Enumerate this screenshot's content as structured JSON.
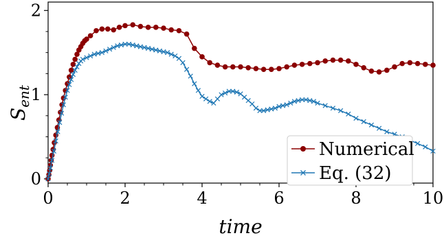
{
  "chart_data": {
    "type": "line",
    "xlabel": "time",
    "ylabel": "S",
    "ylabel_sub": "ent",
    "xlim": [
      0,
      10
    ],
    "ylim": [
      -0.05,
      2.1
    ],
    "xticks": [
      0,
      2,
      4,
      6,
      8,
      10
    ],
    "yticks": [
      0,
      1,
      2
    ],
    "legend": "lower-right",
    "grid": false,
    "series": [
      {
        "name": "Numerical",
        "color": "#8b0000",
        "marker": "circle",
        "points": [
          [
            0.0,
            0.0
          ],
          [
            0.02,
            0.05
          ],
          [
            0.04,
            0.1
          ],
          [
            0.06,
            0.16
          ],
          [
            0.08,
            0.22
          ],
          [
            0.1,
            0.28
          ],
          [
            0.13,
            0.35
          ],
          [
            0.16,
            0.43
          ],
          [
            0.2,
            0.52
          ],
          [
            0.24,
            0.61
          ],
          [
            0.28,
            0.7
          ],
          [
            0.32,
            0.79
          ],
          [
            0.36,
            0.88
          ],
          [
            0.4,
            0.96
          ],
          [
            0.45,
            1.05
          ],
          [
            0.5,
            1.13
          ],
          [
            0.55,
            1.21
          ],
          [
            0.6,
            1.29
          ],
          [
            0.65,
            1.36
          ],
          [
            0.7,
            1.42
          ],
          [
            0.75,
            1.48
          ],
          [
            0.8,
            1.53
          ],
          [
            0.85,
            1.57
          ],
          [
            0.9,
            1.61
          ],
          [
            0.95,
            1.64
          ],
          [
            1.0,
            1.66
          ],
          [
            1.1,
            1.7
          ],
          [
            1.25,
            1.76
          ],
          [
            1.4,
            1.78
          ],
          [
            1.55,
            1.78
          ],
          [
            1.7,
            1.77
          ],
          [
            1.85,
            1.8
          ],
          [
            2.0,
            1.82
          ],
          [
            2.2,
            1.83
          ],
          [
            2.4,
            1.81
          ],
          [
            2.6,
            1.8
          ],
          [
            2.8,
            1.8
          ],
          [
            3.0,
            1.79
          ],
          [
            3.2,
            1.77
          ],
          [
            3.4,
            1.76
          ],
          [
            3.6,
            1.72
          ],
          [
            3.8,
            1.55
          ],
          [
            4.0,
            1.45
          ],
          [
            4.2,
            1.38
          ],
          [
            4.4,
            1.35
          ],
          [
            4.6,
            1.33
          ],
          [
            4.8,
            1.33
          ],
          [
            5.0,
            1.33
          ],
          [
            5.2,
            1.32
          ],
          [
            5.4,
            1.31
          ],
          [
            5.6,
            1.3
          ],
          [
            5.8,
            1.3
          ],
          [
            6.0,
            1.31
          ],
          [
            6.2,
            1.33
          ],
          [
            6.4,
            1.35
          ],
          [
            6.6,
            1.36
          ],
          [
            6.8,
            1.37
          ],
          [
            7.0,
            1.38
          ],
          [
            7.2,
            1.4
          ],
          [
            7.4,
            1.41
          ],
          [
            7.6,
            1.41
          ],
          [
            7.8,
            1.4
          ],
          [
            8.0,
            1.36
          ],
          [
            8.2,
            1.32
          ],
          [
            8.4,
            1.28
          ],
          [
            8.6,
            1.27
          ],
          [
            8.8,
            1.29
          ],
          [
            9.0,
            1.33
          ],
          [
            9.2,
            1.37
          ],
          [
            9.4,
            1.38
          ],
          [
            9.6,
            1.37
          ],
          [
            9.8,
            1.36
          ],
          [
            10.0,
            1.35
          ]
        ]
      },
      {
        "name": "Eq. (32)",
        "color": "#1f77b4",
        "marker": "x",
        "points": [
          [
            0.0,
            0.0
          ],
          [
            0.03,
            0.06
          ],
          [
            0.06,
            0.13
          ],
          [
            0.1,
            0.22
          ],
          [
            0.15,
            0.33
          ],
          [
            0.2,
            0.45
          ],
          [
            0.25,
            0.56
          ],
          [
            0.3,
            0.67
          ],
          [
            0.35,
            0.78
          ],
          [
            0.4,
            0.88
          ],
          [
            0.45,
            0.97
          ],
          [
            0.5,
            1.05
          ],
          [
            0.55,
            1.12
          ],
          [
            0.6,
            1.18
          ],
          [
            0.65,
            1.24
          ],
          [
            0.7,
            1.29
          ],
          [
            0.75,
            1.33
          ],
          [
            0.8,
            1.37
          ],
          [
            0.85,
            1.4
          ],
          [
            0.9,
            1.42
          ],
          [
            1.0,
            1.44
          ],
          [
            1.1,
            1.46
          ],
          [
            1.2,
            1.48
          ],
          [
            1.3,
            1.49
          ],
          [
            1.4,
            1.5
          ],
          [
            1.5,
            1.52
          ],
          [
            1.6,
            1.54
          ],
          [
            1.7,
            1.56
          ],
          [
            1.8,
            1.58
          ],
          [
            1.9,
            1.59
          ],
          [
            2.0,
            1.6
          ],
          [
            2.1,
            1.6
          ],
          [
            2.2,
            1.59
          ],
          [
            2.3,
            1.58
          ],
          [
            2.4,
            1.57
          ],
          [
            2.5,
            1.56
          ],
          [
            2.6,
            1.55
          ],
          [
            2.7,
            1.54
          ],
          [
            2.8,
            1.53
          ],
          [
            2.9,
            1.52
          ],
          [
            3.0,
            1.51
          ],
          [
            3.1,
            1.5
          ],
          [
            3.2,
            1.48
          ],
          [
            3.3,
            1.46
          ],
          [
            3.4,
            1.43
          ],
          [
            3.5,
            1.38
          ],
          [
            3.6,
            1.3
          ],
          [
            3.7,
            1.22
          ],
          [
            3.8,
            1.13
          ],
          [
            3.9,
            1.05
          ],
          [
            4.0,
            0.98
          ],
          [
            4.1,
            0.95
          ],
          [
            4.2,
            0.92
          ],
          [
            4.3,
            0.9
          ],
          [
            4.4,
            0.95
          ],
          [
            4.5,
            1.0
          ],
          [
            4.6,
            1.02
          ],
          [
            4.7,
            1.04
          ],
          [
            4.8,
            1.04
          ],
          [
            4.9,
            1.03
          ],
          [
            5.0,
            1.01
          ],
          [
            5.1,
            0.97
          ],
          [
            5.2,
            0.93
          ],
          [
            5.3,
            0.89
          ],
          [
            5.4,
            0.84
          ],
          [
            5.5,
            0.81
          ],
          [
            5.6,
            0.81
          ],
          [
            5.7,
            0.82
          ],
          [
            5.8,
            0.83
          ],
          [
            5.9,
            0.84
          ],
          [
            6.0,
            0.86
          ],
          [
            6.1,
            0.87
          ],
          [
            6.2,
            0.88
          ],
          [
            6.3,
            0.9
          ],
          [
            6.4,
            0.92
          ],
          [
            6.5,
            0.93
          ],
          [
            6.6,
            0.94
          ],
          [
            6.7,
            0.94
          ],
          [
            6.8,
            0.93
          ],
          [
            6.9,
            0.92
          ],
          [
            7.0,
            0.9
          ],
          [
            7.2,
            0.87
          ],
          [
            7.4,
            0.84
          ],
          [
            7.6,
            0.81
          ],
          [
            7.8,
            0.77
          ],
          [
            8.0,
            0.72
          ],
          [
            8.2,
            0.68
          ],
          [
            8.4,
            0.64
          ],
          [
            8.6,
            0.6
          ],
          [
            8.8,
            0.56
          ],
          [
            9.0,
            0.53
          ],
          [
            9.2,
            0.5
          ],
          [
            9.4,
            0.46
          ],
          [
            9.6,
            0.42
          ],
          [
            9.8,
            0.38
          ],
          [
            10.0,
            0.33
          ]
        ]
      }
    ]
  }
}
